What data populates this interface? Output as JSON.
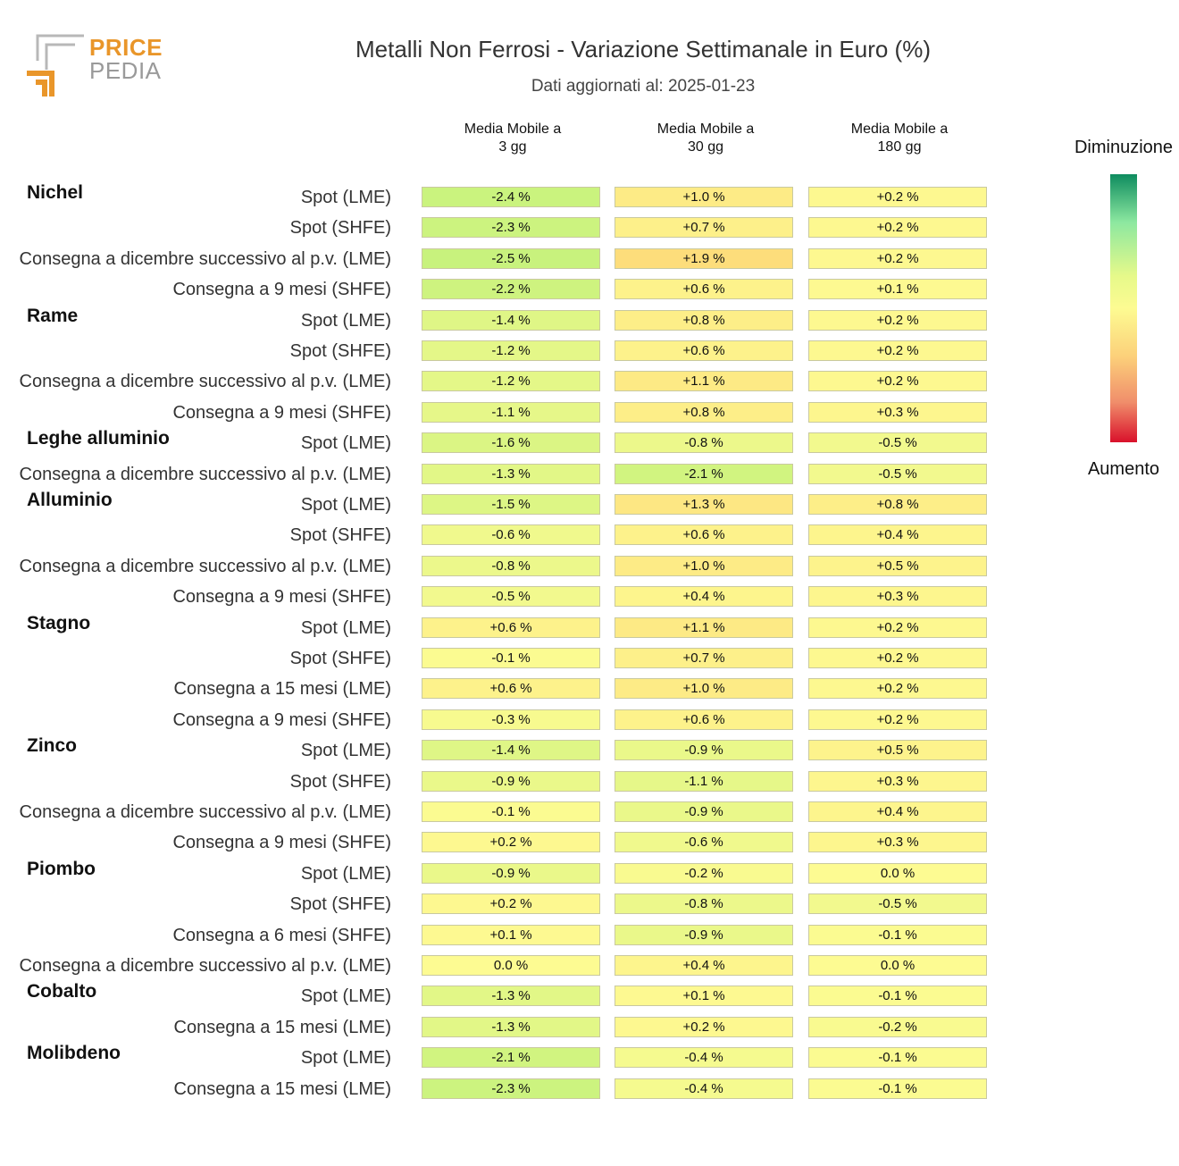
{
  "logo": {
    "line1": "PRICE",
    "line2": "PEDIA"
  },
  "header": {
    "title": "Metalli Non Ferrosi - Variazione Settimanale in Euro (%)",
    "subtitle": "Dati aggiornati al: 2025-01-23"
  },
  "legend": {
    "top_label": "Diminuzione",
    "bottom_label": "Aumento"
  },
  "chart_data": {
    "type": "heatmap",
    "columns": [
      {
        "line1": "Media Mobile a",
        "line2": "3 gg"
      },
      {
        "line1": "Media Mobile a",
        "line2": "30 gg"
      },
      {
        "line1": "Media Mobile a",
        "line2": "180 gg"
      }
    ],
    "unit": "%",
    "groups": [
      {
        "name": "Nichel",
        "rows": [
          {
            "label": "Spot (LME)",
            "values": [
              -2.4,
              1.0,
              0.2
            ]
          },
          {
            "label": "Spot (SHFE)",
            "values": [
              -2.3,
              0.7,
              0.2
            ]
          },
          {
            "label": "Consegna a dicembre successivo al p.v. (LME)",
            "values": [
              -2.5,
              1.9,
              0.2
            ]
          },
          {
            "label": "Consegna a 9 mesi (SHFE)",
            "values": [
              -2.2,
              0.6,
              0.1
            ]
          }
        ]
      },
      {
        "name": "Rame",
        "rows": [
          {
            "label": "Spot (LME)",
            "values": [
              -1.4,
              0.8,
              0.2
            ]
          },
          {
            "label": "Spot (SHFE)",
            "values": [
              -1.2,
              0.6,
              0.2
            ]
          },
          {
            "label": "Consegna a dicembre successivo al p.v. (LME)",
            "values": [
              -1.2,
              1.1,
              0.2
            ]
          },
          {
            "label": "Consegna a 9 mesi (SHFE)",
            "values": [
              -1.1,
              0.8,
              0.3
            ]
          }
        ]
      },
      {
        "name": "Leghe alluminio",
        "rows": [
          {
            "label": "Spot (LME)",
            "values": [
              -1.6,
              -0.8,
              -0.5
            ]
          },
          {
            "label": "Consegna a dicembre successivo al p.v. (LME)",
            "values": [
              -1.3,
              -2.1,
              -0.5
            ]
          }
        ]
      },
      {
        "name": "Alluminio",
        "rows": [
          {
            "label": "Spot (LME)",
            "values": [
              -1.5,
              1.3,
              0.8
            ]
          },
          {
            "label": "Spot (SHFE)",
            "values": [
              -0.6,
              0.6,
              0.4
            ]
          },
          {
            "label": "Consegna a dicembre successivo al p.v. (LME)",
            "values": [
              -0.8,
              1.0,
              0.5
            ]
          },
          {
            "label": "Consegna a 9 mesi (SHFE)",
            "values": [
              -0.5,
              0.4,
              0.3
            ]
          }
        ]
      },
      {
        "name": "Stagno",
        "rows": [
          {
            "label": "Spot (LME)",
            "values": [
              0.6,
              1.1,
              0.2
            ]
          },
          {
            "label": "Spot (SHFE)",
            "values": [
              -0.1,
              0.7,
              0.2
            ]
          },
          {
            "label": "Consegna a 15 mesi (LME)",
            "values": [
              0.6,
              1.0,
              0.2
            ]
          },
          {
            "label": "Consegna a 9 mesi (SHFE)",
            "values": [
              -0.3,
              0.6,
              0.2
            ]
          }
        ]
      },
      {
        "name": "Zinco",
        "rows": [
          {
            "label": "Spot (LME)",
            "values": [
              -1.4,
              -0.9,
              0.5
            ]
          },
          {
            "label": "Spot (SHFE)",
            "values": [
              -0.9,
              -1.1,
              0.3
            ]
          },
          {
            "label": "Consegna a dicembre successivo al p.v. (LME)",
            "values": [
              -0.1,
              -0.9,
              0.4
            ]
          },
          {
            "label": "Consegna a 9 mesi (SHFE)",
            "values": [
              0.2,
              -0.6,
              0.3
            ]
          }
        ]
      },
      {
        "name": "Piombo",
        "rows": [
          {
            "label": "Spot (LME)",
            "values": [
              -0.9,
              -0.2,
              0.0
            ]
          },
          {
            "label": "Spot (SHFE)",
            "values": [
              0.2,
              -0.8,
              -0.5
            ]
          },
          {
            "label": "Consegna a 6 mesi (SHFE)",
            "values": [
              0.1,
              -0.9,
              -0.1
            ]
          },
          {
            "label": "Consegna a dicembre successivo al p.v. (LME)",
            "values": [
              0.0,
              0.4,
              0.0
            ]
          }
        ]
      },
      {
        "name": "Cobalto",
        "rows": [
          {
            "label": "Spot (LME)",
            "values": [
              -1.3,
              0.1,
              -0.1
            ]
          },
          {
            "label": "Consegna a 15 mesi (LME)",
            "values": [
              -1.3,
              0.2,
              -0.2
            ]
          }
        ]
      },
      {
        "name": "Molibdeno",
        "rows": [
          {
            "label": "Spot (LME)",
            "values": [
              -2.1,
              -0.4,
              -0.1
            ]
          },
          {
            "label": "Consegna a 15 mesi (LME)",
            "values": [
              -2.3,
              -0.4,
              -0.1
            ]
          }
        ]
      }
    ],
    "colorscale": {
      "decrease": "#0e8c5f",
      "neutral": "#fdfb92",
      "increase": "#d9112b"
    }
  }
}
